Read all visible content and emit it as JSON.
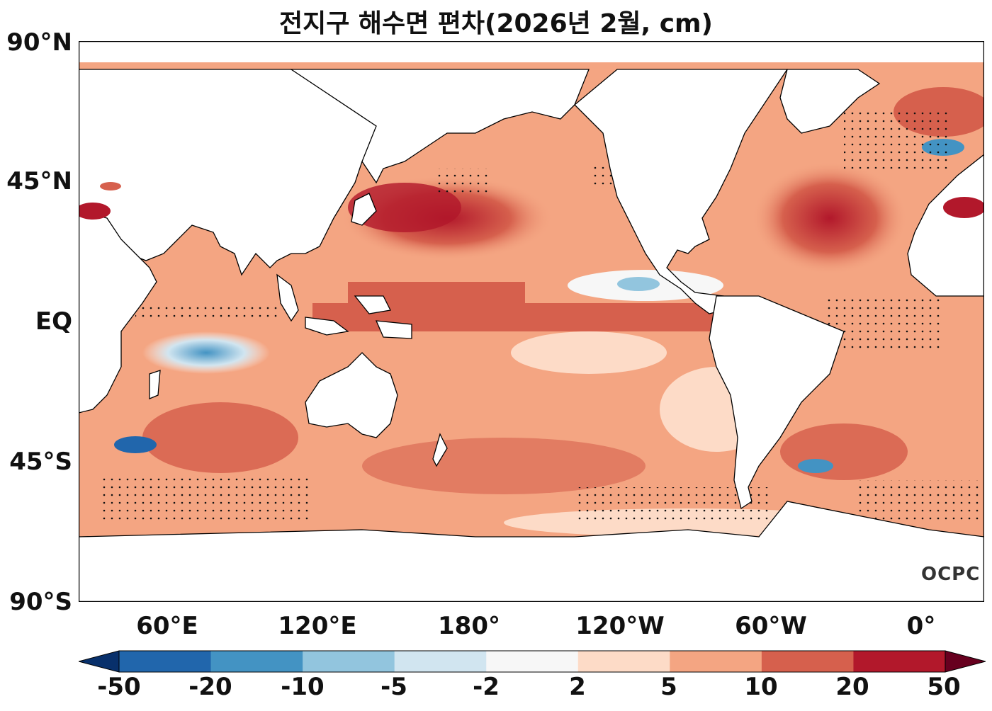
{
  "title": "전지구 해수면 편차(2026년 2월, cm)",
  "logo_text": "OCPC",
  "lat_labels": [
    "90°N",
    "45°N",
    "EQ",
    "45°S",
    "90°S"
  ],
  "lon_labels": [
    "60°E",
    "120°E",
    "180°",
    "120°W",
    "60°W",
    "0°"
  ],
  "colorbar": {
    "ticks": [
      "-50",
      "-20",
      "-10",
      "-5",
      "-2",
      "2",
      "5",
      "10",
      "20",
      "50"
    ],
    "colors": [
      "#08306b",
      "#2166ac",
      "#4393c3",
      "#92c5de",
      "#d1e5f0",
      "#f7f7f7",
      "#fddbc7",
      "#f4a582",
      "#d6604d",
      "#b2182b",
      "#67001f"
    ]
  },
  "colors": {
    "land": "#ffffff",
    "coast": "#000000",
    "ocean_base": "#f4a582"
  }
}
